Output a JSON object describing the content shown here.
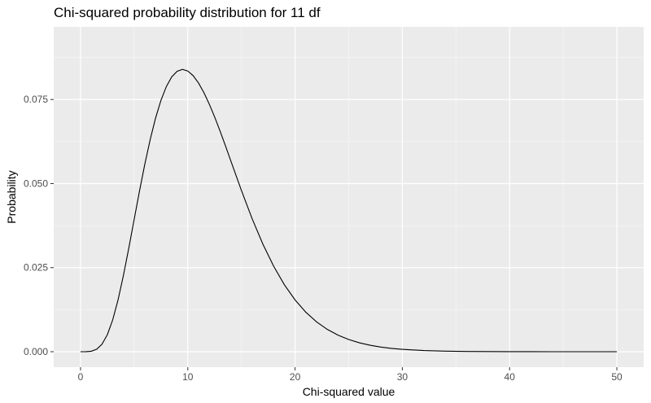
{
  "chart_data": {
    "type": "line",
    "title": "Chi-squared probability distribution for 11 df",
    "xlabel": "Chi-squared value",
    "ylabel": "Probability",
    "xlim": [
      -2.5,
      52.5
    ],
    "ylim": [
      -0.0046,
      0.0966
    ],
    "x_ticks": [
      0,
      10,
      20,
      30,
      40,
      50
    ],
    "x_tick_labels": [
      "0",
      "10",
      "20",
      "30",
      "40",
      "50"
    ],
    "y_ticks": [
      0,
      0.025,
      0.05,
      0.075
    ],
    "y_tick_labels": [
      "0.000",
      "0.025",
      "0.050",
      "0.075"
    ],
    "grid": true,
    "legend": "none",
    "colors": {
      "panel": "#ebebeb",
      "grid_major": "#ffffff",
      "line": "#000000"
    },
    "series": [
      {
        "x": [
          0,
          0.5,
          1,
          1.5,
          2,
          2.5,
          3,
          3.5,
          4,
          4.5,
          5,
          5.5,
          6,
          6.5,
          7,
          7.5,
          8,
          8.5,
          9,
          9.5,
          10,
          10.5,
          11,
          11.5,
          12,
          12.5,
          13,
          13.5,
          14,
          15,
          16,
          17,
          18,
          19,
          20,
          21,
          22,
          23,
          24,
          25,
          26,
          27,
          28,
          29,
          30,
          32,
          34,
          36,
          38,
          40,
          42,
          44,
          46,
          48,
          50
        ],
        "y": [
          0,
          1e-05,
          0.00014,
          0.00073,
          0.00223,
          0.00506,
          0.00947,
          0.01544,
          0.02269,
          0.03081,
          0.03933,
          0.04781,
          0.05586,
          0.06317,
          0.06953,
          0.07478,
          0.07885,
          0.08171,
          0.08339,
          0.08395,
          0.08348,
          0.08209,
          0.07991,
          0.07705,
          0.07365,
          0.06983,
          0.06569,
          0.06133,
          0.05686,
          0.04795,
          0.03954,
          0.03199,
          0.02544,
          0.01993,
          0.01541,
          0.01176,
          0.00889,
          0.00665,
          0.00494,
          0.00363,
          0.00265,
          0.00192,
          0.00138,
          0.00099,
          0.00071,
          0.00035,
          0.00017,
          8e-05,
          4e-05,
          2e-05,
          1e-05,
          0.0,
          0.0,
          0.0,
          0.0
        ]
      }
    ]
  }
}
